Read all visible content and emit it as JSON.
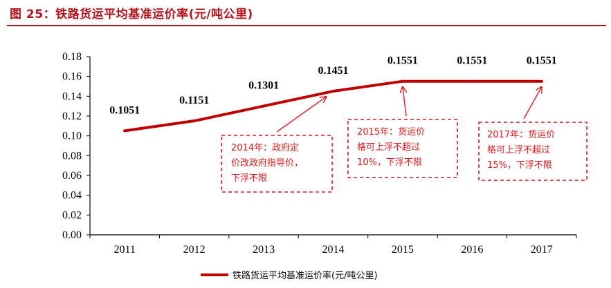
{
  "figure_title": "图 25：铁路货运平均基准运价率(元/吨公里)",
  "colors": {
    "title": "#b5121b",
    "series": "#c00000",
    "annotation": "#d7191c",
    "axis": "#000000"
  },
  "chart_data": {
    "type": "line",
    "x": [
      "2011",
      "2012",
      "2013",
      "2014",
      "2015",
      "2016",
      "2017"
    ],
    "series": [
      {
        "name": "铁路货运平均基准运价率(元/吨公里)",
        "values": [
          0.1051,
          0.1151,
          0.1301,
          0.1451,
          0.1551,
          0.1551,
          0.1551
        ]
      }
    ],
    "data_labels": [
      "0.1051",
      "0.1151",
      "0.1301",
      "0.1451",
      "0.1551",
      "0.1551",
      "0.1551"
    ],
    "y_ticks": [
      "0.00",
      "0.02",
      "0.04",
      "0.06",
      "0.08",
      "0.10",
      "0.12",
      "0.14",
      "0.16",
      "0.18"
    ],
    "ylim": [
      0,
      0.18
    ],
    "grid": false,
    "legend": "bottom-center",
    "annotations": [
      {
        "target_year": "2014",
        "lines": [
          "2014年：政府定",
          "价改政府指导价，",
          "下浮不限"
        ]
      },
      {
        "target_year": "2015",
        "lines": [
          "2015年：货运价",
          "格可上浮不超过",
          "10%，下浮不限"
        ]
      },
      {
        "target_year": "2017",
        "lines": [
          "2017年：货运价",
          "格可上浮不超过",
          "15%，下浮不限"
        ]
      }
    ]
  }
}
